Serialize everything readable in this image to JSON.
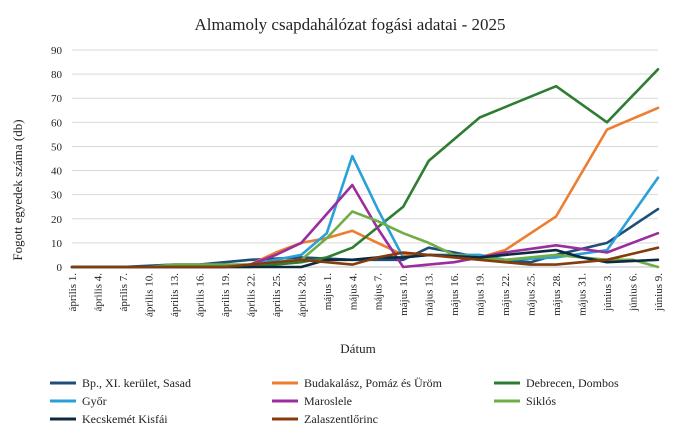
{
  "chart_data": {
    "type": "line",
    "title": "Almamoly csapdahálózat fogási adatai - 2025",
    "xlabel": "Dátum",
    "ylabel": "Fogott egyedek száma (db)",
    "ylim": [
      0,
      90
    ],
    "yticks": [
      0,
      10,
      20,
      30,
      40,
      50,
      60,
      70,
      80,
      90
    ],
    "grid": true,
    "legend_position": "bottom",
    "categories": [
      "április 1.",
      "április 4.",
      "április 7.",
      "április 10.",
      "április 13.",
      "április 16.",
      "április 19.",
      "április 22.",
      "április 25.",
      "április 28.",
      "május 1.",
      "május 4.",
      "május 7.",
      "május 10.",
      "május 13.",
      "május 16.",
      "május 19.",
      "május 22.",
      "május 25.",
      "május 28.",
      "május 31.",
      "június 3.",
      "június 6.",
      "június 9."
    ],
    "series": [
      {
        "name": "Bp., XI. kerület, Sasad",
        "color": "#1f4e79",
        "points": [
          [
            0,
            0
          ],
          [
            2,
            0
          ],
          [
            4,
            1
          ],
          [
            5,
            1
          ],
          [
            7,
            3
          ],
          [
            9,
            4
          ],
          [
            11,
            3
          ],
          [
            13,
            3
          ],
          [
            14,
            8
          ],
          [
            15,
            6
          ],
          [
            16,
            4
          ],
          [
            17,
            3
          ],
          [
            18,
            2
          ],
          [
            19,
            5
          ],
          [
            21,
            10
          ],
          [
            23,
            24
          ]
        ]
      },
      {
        "name": "Budakalász, Pomáz és Üröm",
        "color": "#ed7d31",
        "points": [
          [
            0,
            0
          ],
          [
            2,
            0
          ],
          [
            4,
            0
          ],
          [
            6,
            0
          ],
          [
            7,
            1
          ],
          [
            8,
            6
          ],
          [
            9,
            10
          ],
          [
            10,
            12
          ],
          [
            11,
            15
          ],
          [
            12,
            10
          ],
          [
            13,
            5
          ],
          [
            14,
            5
          ],
          [
            15,
            5
          ],
          [
            16,
            4
          ],
          [
            17,
            7
          ],
          [
            19,
            21
          ],
          [
            21,
            57
          ],
          [
            23,
            66
          ]
        ]
      },
      {
        "name": "Debrecen, Dombos",
        "color": "#2e7d32",
        "points": [
          [
            0,
            0
          ],
          [
            4,
            0
          ],
          [
            5,
            0
          ],
          [
            6,
            0
          ],
          [
            7,
            0
          ],
          [
            8,
            1
          ],
          [
            9,
            2
          ],
          [
            10,
            4
          ],
          [
            11,
            8
          ],
          [
            13,
            25
          ],
          [
            14,
            44
          ],
          [
            16,
            62
          ],
          [
            19,
            75
          ],
          [
            21,
            60
          ],
          [
            23,
            82
          ]
        ]
      },
      {
        "name": "Győr",
        "color": "#2aa0d8",
        "points": [
          [
            0,
            0
          ],
          [
            4,
            0
          ],
          [
            6,
            0
          ],
          [
            7,
            1
          ],
          [
            8,
            3
          ],
          [
            9,
            5
          ],
          [
            10,
            14
          ],
          [
            11,
            46
          ],
          [
            12,
            24
          ],
          [
            13,
            4
          ],
          [
            14,
            5
          ],
          [
            15,
            5
          ],
          [
            16,
            5
          ],
          [
            17,
            3
          ],
          [
            19,
            4
          ],
          [
            21,
            7
          ],
          [
            23,
            37
          ]
        ]
      },
      {
        "name": "Maroslele",
        "color": "#9b2d9e",
        "points": [
          [
            0,
            0
          ],
          [
            4,
            0
          ],
          [
            6,
            0
          ],
          [
            7,
            1
          ],
          [
            8,
            5
          ],
          [
            9,
            10
          ],
          [
            11,
            34
          ],
          [
            12,
            16
          ],
          [
            13,
            0
          ],
          [
            14,
            1
          ],
          [
            15,
            2
          ],
          [
            16,
            4
          ],
          [
            17,
            6
          ],
          [
            19,
            9
          ],
          [
            21,
            6
          ],
          [
            23,
            14
          ]
        ]
      },
      {
        "name": "Siklós",
        "color": "#70ad47",
        "points": [
          [
            0,
            0
          ],
          [
            3,
            0
          ],
          [
            4,
            1
          ],
          [
            5,
            1
          ],
          [
            6,
            1
          ],
          [
            7,
            1
          ],
          [
            8,
            2
          ],
          [
            9,
            3
          ],
          [
            10,
            12
          ],
          [
            11,
            23
          ],
          [
            12,
            19
          ],
          [
            13,
            14
          ],
          [
            14,
            10
          ],
          [
            15,
            5
          ],
          [
            16,
            4
          ],
          [
            17,
            3
          ],
          [
            19,
            5
          ],
          [
            21,
            3
          ],
          [
            22,
            3
          ],
          [
            23,
            0
          ]
        ]
      },
      {
        "name": "Kecskemét Kisfái",
        "color": "#0b2a3f",
        "points": [
          [
            0,
            0
          ],
          [
            7,
            0
          ],
          [
            9,
            0
          ],
          [
            10,
            3
          ],
          [
            11,
            3
          ],
          [
            12,
            4
          ],
          [
            13,
            4
          ],
          [
            14,
            5
          ],
          [
            16,
            4
          ],
          [
            17,
            5
          ],
          [
            19,
            7
          ],
          [
            20,
            4
          ],
          [
            21,
            2
          ],
          [
            23,
            3
          ]
        ]
      },
      {
        "name": "Zalaszentlőrinc",
        "color": "#843c0c",
        "points": [
          [
            0,
            0
          ],
          [
            6,
            0
          ],
          [
            7,
            1
          ],
          [
            8,
            2
          ],
          [
            9,
            3
          ],
          [
            10,
            2
          ],
          [
            11,
            1
          ],
          [
            12,
            4
          ],
          [
            13,
            6
          ],
          [
            14,
            5
          ],
          [
            15,
            4
          ],
          [
            16,
            3
          ],
          [
            17,
            2
          ],
          [
            18,
            1
          ],
          [
            19,
            1
          ],
          [
            20,
            2
          ],
          [
            21,
            3
          ],
          [
            23,
            8
          ]
        ]
      }
    ]
  }
}
